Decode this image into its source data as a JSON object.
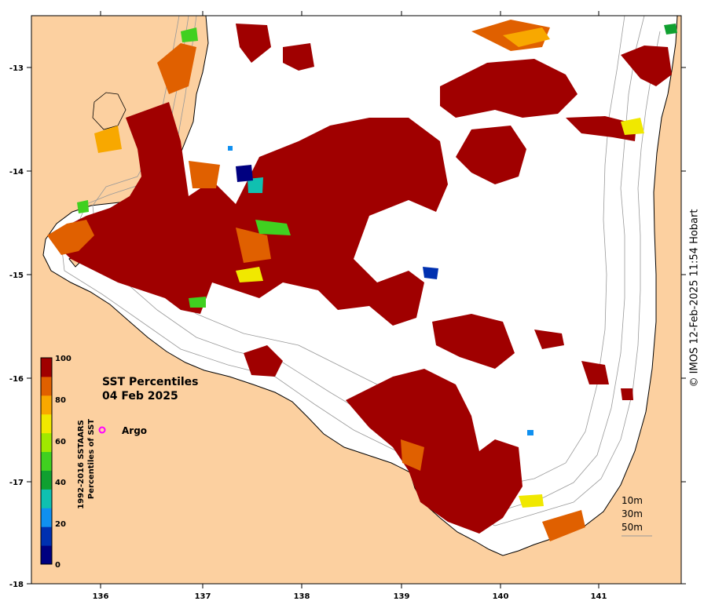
{
  "map": {
    "title_line1": "SST Percentiles",
    "title_line2": "04 Feb 2025",
    "x_ticks": [
      "136",
      "137",
      "138",
      "139",
      "140",
      "141"
    ],
    "y_ticks": [
      "-13",
      "-14",
      "-15",
      "-16",
      "-17",
      "-18"
    ],
    "colorbar": {
      "tick_labels": [
        "100",
        "80",
        "60",
        "40",
        "20",
        "0"
      ],
      "label_line1": "1992-2016 SSTAARS",
      "label_line2": "Percentiles of SST",
      "colors": [
        "#000080",
        "#0030b0",
        "#1090f0",
        "#10c0b0",
        "#10a030",
        "#40d020",
        "#a0e800",
        "#f0e800",
        "#f8a800",
        "#e06000",
        "#a00000"
      ]
    },
    "legend": {
      "argo_label": "Argo",
      "argo_color": "#ff00ff"
    },
    "isobaths": [
      "10m",
      "30m",
      "50m"
    ],
    "colors": {
      "land": "#fcd0a0",
      "ocean": "#ffffff",
      "hot": "#a00000",
      "isobath": "#999999"
    }
  },
  "credit": "© IMOS 12-Feb-2025 11:54 Hobart"
}
